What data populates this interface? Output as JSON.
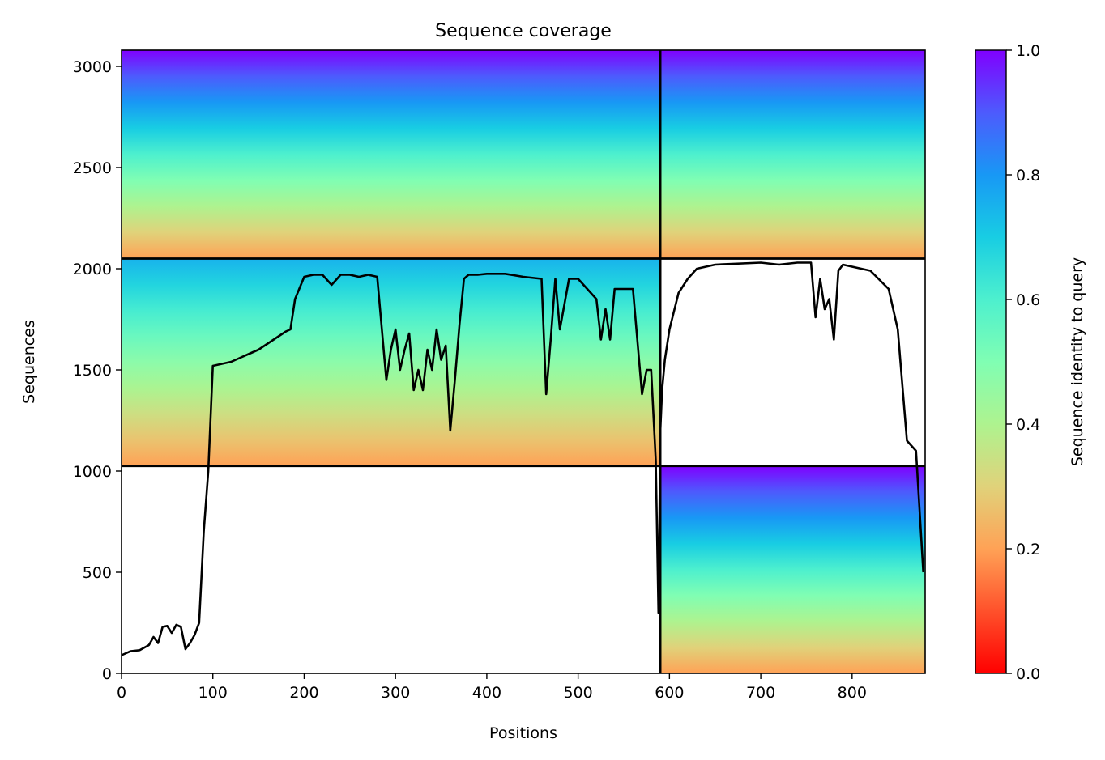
{
  "chart_data": [
    {
      "type": "heatmap",
      "title": "Sequence coverage",
      "xlabel": "Positions",
      "ylabel": "Sequences",
      "xlim": [
        0,
        880
      ],
      "ylim": [
        0,
        3080
      ],
      "xticks": [
        0,
        100,
        200,
        300,
        400,
        500,
        600,
        700,
        800
      ],
      "yticks": [
        0,
        500,
        1000,
        1500,
        2000,
        2500,
        3000
      ],
      "grid": false,
      "colormap": "rainbow_r",
      "block_boundaries": {
        "x": [
          590
        ],
        "y": [
          1025,
          2050
        ],
        "segments": [
          {
            "from": [
              0,
              1025
            ],
            "to": [
              590,
              1025
            ]
          },
          {
            "from": [
              590,
              1025
            ],
            "to": [
              880,
              1025
            ]
          },
          {
            "from": [
              0,
              2050
            ],
            "to": [
              880,
              2050
            ]
          },
          {
            "from": [
              590,
              0
            ],
            "to": [
              590,
              3080
            ]
          }
        ]
      },
      "blocks": [
        {
          "x_range": [
            590,
            880
          ],
          "y_range": [
            0,
            1025
          ],
          "identity_top": 1.0,
          "identity_bottom": 0.2
        },
        {
          "x_range": [
            0,
            590
          ],
          "y_range": [
            1025,
            2050
          ],
          "identity_top": 0.75,
          "identity_bottom": 0.2
        },
        {
          "x_range": [
            0,
            590
          ],
          "y_range": [
            2050,
            3080
          ],
          "identity_top": 1.0,
          "identity_bottom": 0.2
        },
        {
          "x_range": [
            590,
            880
          ],
          "y_range": [
            2050,
            3080
          ],
          "identity_top": 1.0,
          "identity_bottom": 0.2
        }
      ],
      "coverage_line": {
        "x": [
          0,
          5,
          10,
          20,
          30,
          35,
          40,
          45,
          50,
          55,
          60,
          65,
          70,
          75,
          80,
          85,
          90,
          95,
          100,
          110,
          120,
          130,
          140,
          150,
          160,
          170,
          180,
          185,
          190,
          200,
          210,
          220,
          230,
          240,
          250,
          260,
          270,
          280,
          290,
          295,
          300,
          305,
          310,
          315,
          320,
          325,
          330,
          335,
          340,
          345,
          350,
          355,
          360,
          365,
          370,
          375,
          380,
          390,
          400,
          420,
          440,
          460,
          465,
          470,
          475,
          480,
          490,
          500,
          510,
          520,
          525,
          530,
          535,
          540,
          545,
          550,
          560,
          570,
          575,
          580,
          585,
          588,
          590,
          592,
          595,
          600,
          610,
          620,
          630,
          640,
          650,
          700,
          720,
          740,
          755,
          760,
          765,
          770,
          775,
          780,
          785,
          790,
          800,
          820,
          840,
          850,
          860,
          870,
          878
        ],
        "y": [
          90,
          100,
          110,
          115,
          140,
          180,
          150,
          230,
          235,
          200,
          240,
          230,
          120,
          150,
          190,
          250,
          700,
          1000,
          1520,
          1530,
          1540,
          1560,
          1580,
          1600,
          1630,
          1660,
          1690,
          1700,
          1850,
          1960,
          1970,
          1970,
          1920,
          1970,
          1970,
          1960,
          1970,
          1960,
          1450,
          1600,
          1700,
          1500,
          1600,
          1680,
          1400,
          1500,
          1400,
          1600,
          1500,
          1700,
          1550,
          1620,
          1200,
          1450,
          1720,
          1950,
          1970,
          1970,
          1975,
          1975,
          1960,
          1950,
          1380,
          1650,
          1950,
          1700,
          1950,
          1950,
          1900,
          1850,
          1650,
          1800,
          1650,
          1900,
          1900,
          1900,
          1900,
          1380,
          1500,
          1500,
          1050,
          300,
          1200,
          1400,
          1550,
          1700,
          1880,
          1950,
          2000,
          2010,
          2020,
          2030,
          2020,
          2030,
          2030,
          1760,
          1950,
          1800,
          1850,
          1650,
          1990,
          2020,
          2010,
          1990,
          1900,
          1700,
          1150,
          1100,
          500
        ]
      }
    },
    {
      "type": "colorbar",
      "ylabel": "Sequence identity to query",
      "ylim": [
        0.0,
        1.0
      ],
      "ticks": [
        "0.0",
        "0.2",
        "0.4",
        "0.6",
        "0.8",
        "1.0"
      ],
      "colormap": "rainbow_r"
    }
  ]
}
